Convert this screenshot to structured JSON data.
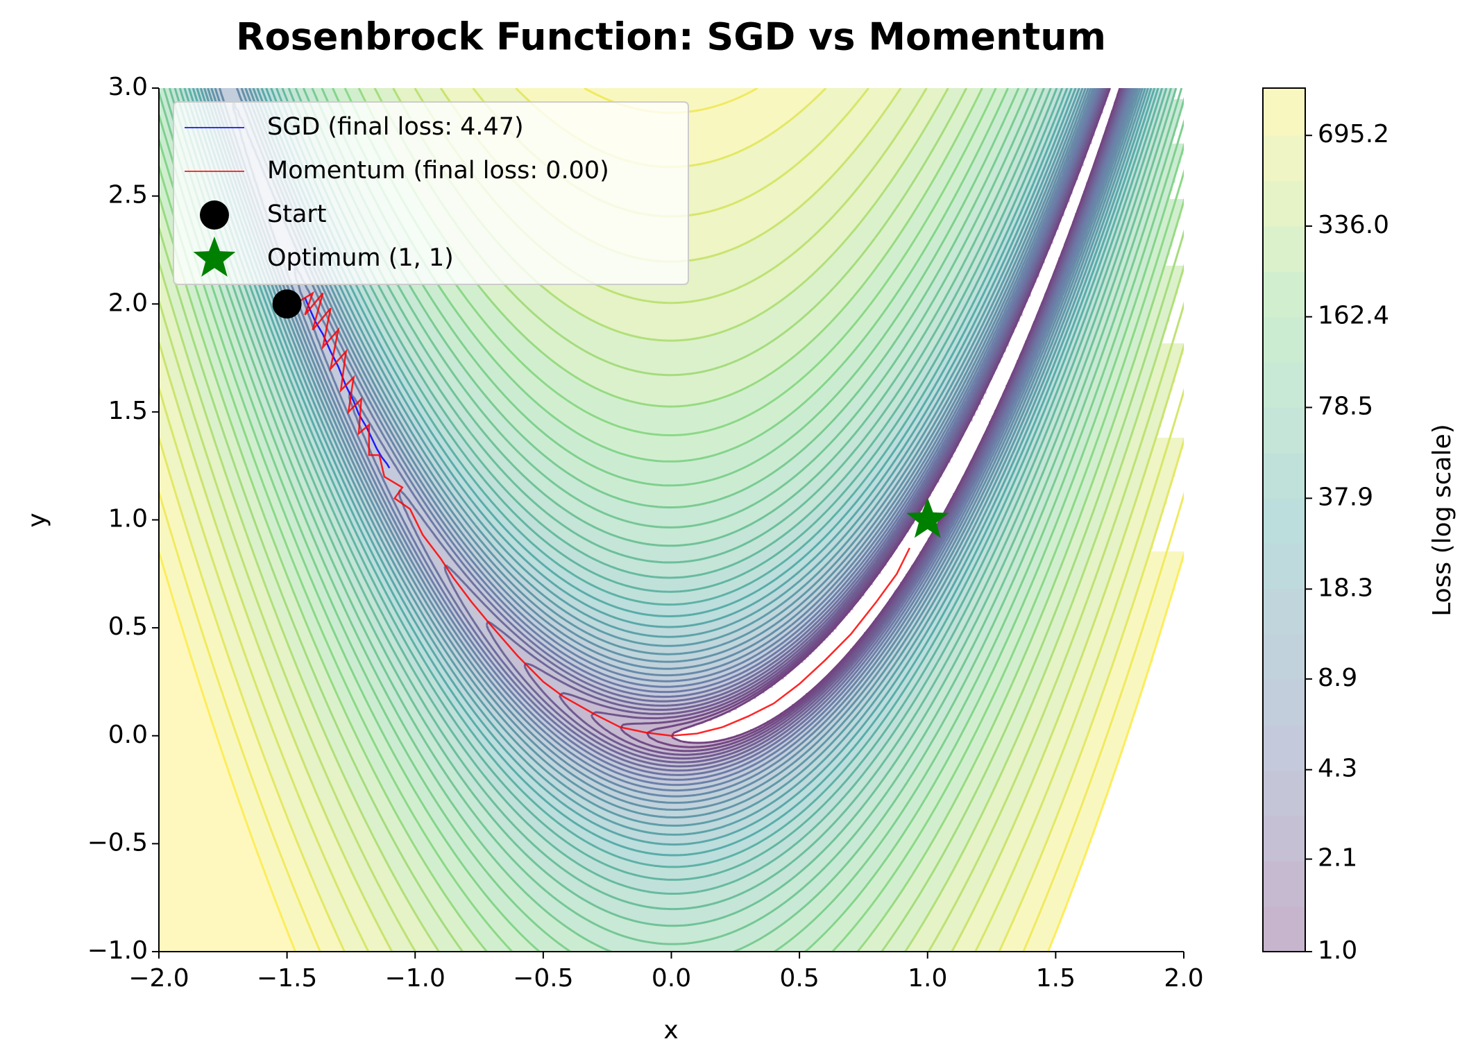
{
  "chart_data": {
    "type": "contour",
    "title": "Rosenbrock Function: SGD vs Momentum",
    "xlabel": "x",
    "ylabel": "y",
    "xlim": [
      -2,
      2
    ],
    "ylim": [
      -1,
      3
    ],
    "xticks": [
      {
        "value": -2,
        "label": "−2.0"
      },
      {
        "value": -1.5,
        "label": "−1.5"
      },
      {
        "value": -1,
        "label": "−1.0"
      },
      {
        "value": -0.5,
        "label": "−0.5"
      },
      {
        "value": 0,
        "label": "0.0"
      },
      0.5,
      {
        "value": 1,
        "label": "1.0"
      },
      1.5,
      {
        "value": 2,
        "label": "2.0"
      }
    ],
    "yticks": [
      {
        "value": -1,
        "label": "−1.0"
      },
      {
        "value": -0.5,
        "label": "−0.5"
      },
      {
        "value": 0,
        "label": "0.0"
      },
      0.5,
      {
        "value": 1,
        "label": "1.0"
      },
      1.5,
      {
        "value": 2,
        "label": "2.0"
      },
      2.5,
      {
        "value": 3,
        "label": "3.0"
      }
    ],
    "colorbar": {
      "label": "Loss (log scale)",
      "log": true,
      "zlim": [
        1,
        1016
      ],
      "ticks": [
        {
          "value": 1,
          "label": "1.0"
        },
        2.1,
        4.3,
        8.9,
        18.3,
        37.9,
        78.5,
        162.4,
        {
          "value": 336,
          "label": "336.0"
        },
        695.2
      ]
    },
    "legend": "upper left",
    "series": [
      {
        "name": "SGD (final loss: 4.47)",
        "color": "blue",
        "x": [
          -1.43,
          -1.42,
          -1.39,
          -1.36,
          -1.33,
          -1.3,
          -1.27,
          -1.24,
          -1.22,
          -1.19,
          -1.17,
          -1.15,
          -1.13,
          -1.11,
          -1.1
        ],
        "y": [
          2.03,
          2.0,
          1.92,
          1.86,
          1.78,
          1.71,
          1.62,
          1.55,
          1.49,
          1.43,
          1.38,
          1.33,
          1.29,
          1.26,
          1.24
        ]
      },
      {
        "name": "Momentum (final loss: 0.00)",
        "color": "red",
        "x": [
          -1.47,
          -1.4,
          -1.43,
          -1.36,
          -1.4,
          -1.33,
          -1.36,
          -1.3,
          -1.33,
          -1.27,
          -1.29,
          -1.24,
          -1.26,
          -1.21,
          -1.22,
          -1.18,
          -1.18,
          -1.14,
          -1.12,
          -1.05,
          -1.08,
          -1.02,
          -0.97,
          -0.9,
          -0.85,
          -0.78,
          -0.71,
          -0.6,
          -0.5,
          -0.42,
          -0.3,
          -0.2,
          -0.1,
          0.0,
          0.1,
          0.2,
          0.3,
          0.4,
          0.5,
          0.6,
          0.7,
          0.8,
          0.88,
          0.93
        ],
        "y": [
          2.0,
          2.05,
          1.95,
          2.05,
          1.88,
          1.98,
          1.8,
          1.88,
          1.7,
          1.78,
          1.6,
          1.66,
          1.5,
          1.56,
          1.4,
          1.44,
          1.3,
          1.3,
          1.2,
          1.15,
          1.1,
          1.05,
          0.93,
          0.82,
          0.73,
          0.62,
          0.52,
          0.37,
          0.25,
          0.18,
          0.1,
          0.04,
          0.015,
          0.0,
          0.01,
          0.04,
          0.09,
          0.15,
          0.24,
          0.35,
          0.47,
          0.62,
          0.75,
          0.87
        ]
      }
    ],
    "markers": [
      {
        "name": "Start",
        "x": -1.5,
        "y": 2,
        "color": "black",
        "marker": "circle"
      },
      {
        "name": "Optimum (1, 1)",
        "x": 1,
        "y": 1,
        "color": "green",
        "marker": "star"
      }
    ]
  }
}
